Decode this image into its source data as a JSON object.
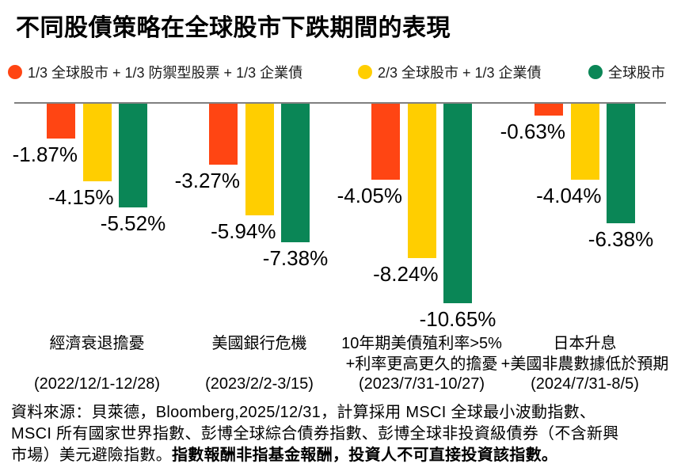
{
  "title": "不同股債策略在全球股市下跌期間的表現",
  "colors": {
    "strategy_defensive": "#FF4513",
    "strategy_two_thirds": "#FFCE00",
    "global_equity": "#0A8656",
    "baseline": "#808080"
  },
  "legend": [
    {
      "label": "1/3 全球股市 + 1/3 防禦型股票 + 1/3 企業債",
      "color": "#FF4513"
    },
    {
      "label": "2/3 全球股市 + 1/3 企業債",
      "color": "#FFCE00"
    },
    {
      "label": "全球股市",
      "color": "#0A8656"
    }
  ],
  "chart_data": {
    "type": "bar",
    "title": "不同股債策略在全球股市下跌期間的表現",
    "xlabel": "",
    "ylabel": "",
    "value_suffix": "%",
    "ylim": [
      -11.5,
      0
    ],
    "grid": false,
    "axis_visible": false,
    "legend_position": "top",
    "categories": [
      {
        "name_lines": [
          "經濟衰退擔憂"
        ],
        "date": "(2022/12/1-12/28)"
      },
      {
        "name_lines": [
          "美國銀行危機"
        ],
        "date": "(2023/2/2-3/15)"
      },
      {
        "name_lines": [
          "10年期美債殖利率>5%",
          "+利率更高更久的擔憂"
        ],
        "date": "(2023/7/31-10/27)"
      },
      {
        "name_lines": [
          "日本升息",
          "+美國非農數據低於預期"
        ],
        "date": "(2024/7/31-8/5)"
      }
    ],
    "series": [
      {
        "name": "1/3 全球股市 + 1/3 防禦型股票 + 1/3 企業債",
        "color": "#FF4513",
        "values": [
          -1.87,
          -3.27,
          -4.05,
          -0.63
        ],
        "labels": [
          "-1.87%",
          "-3.27%",
          "-4.05%",
          "-0.63%"
        ]
      },
      {
        "name": "2/3 全球股市 + 1/3 企業債",
        "color": "#FFCE00",
        "values": [
          -4.15,
          -5.94,
          -8.24,
          -4.04
        ],
        "labels": [
          "-4.15%",
          "-5.94%",
          "-8.24%",
          "-4.04%"
        ]
      },
      {
        "name": "全球股市",
        "color": "#0A8656",
        "values": [
          -5.52,
          -7.38,
          -10.65,
          -6.38
        ],
        "labels": [
          "-5.52%",
          "-7.38%",
          "-10.65%",
          "-6.38%"
        ]
      }
    ]
  },
  "footer": {
    "lines": [
      {
        "normal": "資料來源：貝萊德，Bloomberg,2025/12/31，計算採用 MSCI 全球最小波動指數、",
        "bold": ""
      },
      {
        "normal": "MSCI 所有國家世界指數、彭博全球綜合債券指數、彭博全球非投資級債券（不含新興",
        "bold": ""
      },
      {
        "normal": "市場）美元避險指數。",
        "bold": "指數報酬非指基金報酬，投資人不可直接投資該指數。"
      }
    ]
  }
}
